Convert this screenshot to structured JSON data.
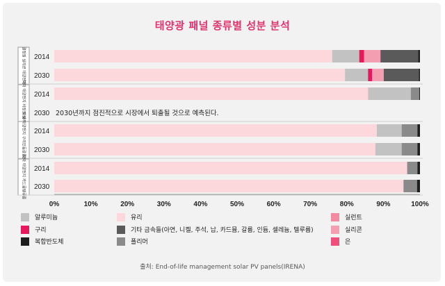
{
  "chart_data": {
    "type": "bar",
    "orientation": "horizontal",
    "stacked": true,
    "title": "태양광 패널 종류별 성분 분석",
    "groups": [
      {
        "label": "결정질 실리콘 태양전지",
        "rows": [
          "2014",
          "2030"
        ]
      },
      {
        "label": "박막 태양전지 비정질 실리콘",
        "rows": [
          "2014",
          "2030"
        ]
      },
      {
        "label": "박막 태양전지 구리인듐갈륨셀레늄",
        "rows": [
          "2014",
          "2030"
        ]
      },
      {
        "label": "박막 태양전지 카드뮴텔루륨",
        "rows": [
          "2014",
          "2030"
        ]
      }
    ],
    "categories": [
      "2014",
      "2030",
      "2014",
      "2030",
      "2014",
      "2030",
      "2014",
      "2030"
    ],
    "series": [
      {
        "name": "유리",
        "color": "#fcd7dc",
        "values": [
          76,
          79.5,
          85.8,
          0,
          88.2,
          87.8,
          96.5,
          95.5
        ]
      },
      {
        "name": "알루미늄",
        "color": "#c2c2c2",
        "values": [
          7.4,
          6.3,
          11.7,
          0,
          6.8,
          7.2,
          0,
          0
        ]
      },
      {
        "name": "구리",
        "color": "#e8185c",
        "values": [
          1.3,
          1.1,
          0,
          0,
          0,
          0,
          0,
          0
        ]
      },
      {
        "name": "실리콘",
        "color": "#f49eb2",
        "values": [
          4.5,
          3.2,
          0,
          0,
          0,
          0,
          0,
          0
        ]
      },
      {
        "name": "기타 금속들(아연, 니켈, 주석, 납, 카드뮴, 갈륨, 인듐, 셀레늄, 텔루륨)",
        "color": "#5a5a5a",
        "values": [
          10.3,
          9.6,
          0,
          0,
          0,
          0,
          0,
          0
        ]
      },
      {
        "name": "폴리머",
        "color": "#8a8a8a",
        "values": [
          0,
          0,
          2.3,
          0,
          4.3,
          4.3,
          2.8,
          3.7
        ]
      },
      {
        "name": "복합반도체",
        "color": "#1e1e1e",
        "values": [
          0.5,
          0.3,
          0.2,
          0,
          0.7,
          0.7,
          0.7,
          0.8
        ]
      },
      {
        "name": "실런트",
        "color": "#f28aa0",
        "values": [
          0,
          0,
          0,
          0,
          0,
          0,
          0,
          0
        ]
      },
      {
        "name": "은",
        "color": "#ef4f7a",
        "values": [
          0,
          0,
          0,
          0,
          0,
          0,
          0,
          0
        ]
      }
    ],
    "xlim": [
      0,
      100
    ],
    "xticks": [
      "0%",
      "10%",
      "20%",
      "30%",
      "40%",
      "50%",
      "60%",
      "70%",
      "80%",
      "90%",
      "100%"
    ],
    "annotation": {
      "row_index": 3,
      "text": "2030년까지 점진적으로 시장에서 퇴출될 것으로 예측된다."
    },
    "legend": {
      "placement": "bottom",
      "columns": [
        [
          {
            "name": "알루미늄",
            "color": "#c2c2c2"
          },
          {
            "name": "구리",
            "color": "#e8185c"
          },
          {
            "name": "복합반도체",
            "color": "#1e1e1e"
          }
        ],
        [
          {
            "name": "유리",
            "color": "#fcd7dc"
          },
          {
            "name": "기타 금속들(아연, 니켈, 주석, 납, 카드뮴, 갈륨, 인듐, 셀레늄, 텔루륨)",
            "color": "#5a5a5a"
          },
          {
            "name": "폴리머",
            "color": "#8a8a8a"
          }
        ],
        [
          {
            "name": "실런트",
            "color": "#f28aa0"
          },
          {
            "name": "실리콘",
            "color": "#f49eb2"
          },
          {
            "name": "은",
            "color": "#ef4f7a"
          }
        ]
      ]
    },
    "source": "출처: End-of-life management  solar PV panels(IRENA)"
  }
}
